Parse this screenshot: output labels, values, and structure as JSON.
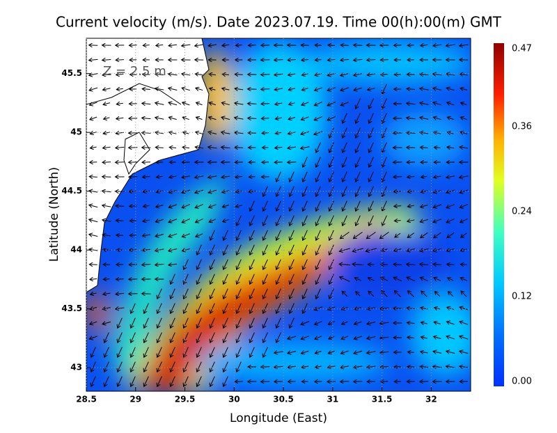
{
  "chart_data": {
    "type": "map",
    "title": "Current velocity (m/s). Date 2023.07.19. Time 00(h):00(m) GMT",
    "annotation": "Z = 2.5 m",
    "x_label": "Longitude (East)",
    "y_label": "Latitude (North)",
    "xlim": [
      28.5,
      32.4
    ],
    "ylim": [
      42.8,
      45.8
    ],
    "xticks": [
      28.5,
      29,
      29.5,
      30,
      30.5,
      31,
      31.5,
      32
    ],
    "yticks": [
      43,
      43.5,
      44,
      44.5,
      45,
      45.5
    ],
    "grid": true,
    "colorbar": {
      "lim": [
        0,
        0.47
      ],
      "ticks": [
        {
          "value": 0,
          "label": "0.00"
        },
        0.12,
        0.24,
        0.36,
        0.47
      ]
    }
  }
}
